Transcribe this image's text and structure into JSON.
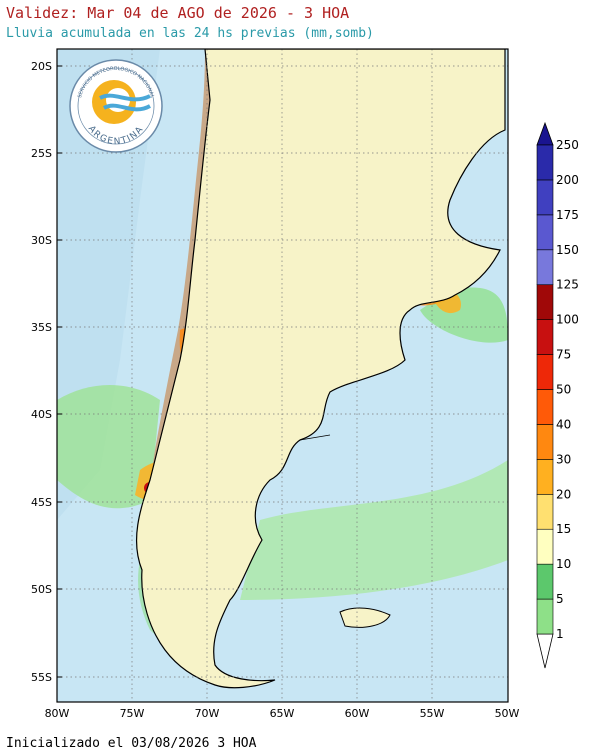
{
  "header": {
    "title": "Validez: Mar 04 de AGO de 2026 - 3 HOA",
    "subtitle": "Lluvia acumulada en las 24 hs previas (mm,somb)"
  },
  "footer": {
    "initialized": "Inicializado el 03/08/2026 3 HOA"
  },
  "logo": {
    "text_bottom": "ARGENTINA",
    "text_top": "SERVICIO METEOROLOGICO NACIONAL"
  },
  "map": {
    "lat_ticks": [
      "20S",
      "25S",
      "30S",
      "35S",
      "40S",
      "45S",
      "50S",
      "55S"
    ],
    "lon_ticks": [
      "80W",
      "75W",
      "70W",
      "65W",
      "60W",
      "55W",
      "50W"
    ]
  },
  "colorbar": {
    "labels": [
      "1",
      "5",
      "10",
      "15",
      "20",
      "30",
      "40",
      "50",
      "75",
      "100",
      "125",
      "150",
      "175",
      "200",
      "250"
    ],
    "colors": [
      "#b8f0a0",
      "#8ee088",
      "#5cc86c",
      "#ffffc0",
      "#ffe070",
      "#ffb020",
      "#ff8810",
      "#ff5a08",
      "#ee2808",
      "#c81010",
      "#a00808",
      "#7878dc",
      "#5a58d0",
      "#4040c0",
      "#2a2aaa",
      "#1a1490"
    ]
  }
}
